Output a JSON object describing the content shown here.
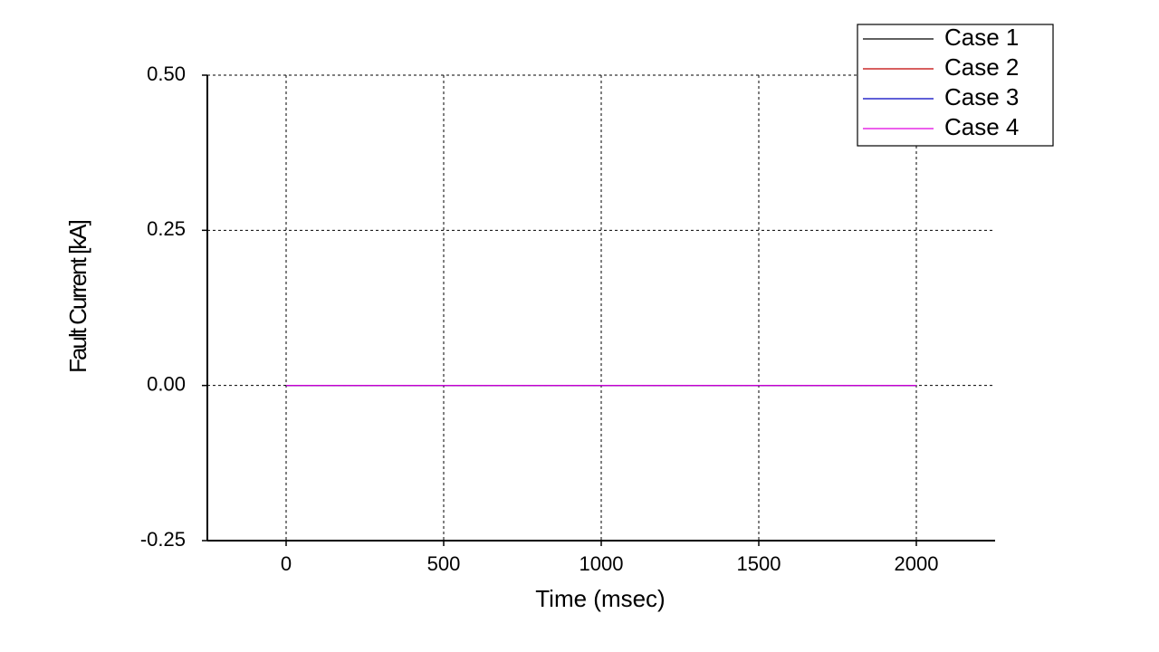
{
  "chart_data": {
    "type": "line",
    "x_label": "Time (msec)",
    "y_label": "Fault Current [kA]",
    "x": [
      0,
      2000
    ],
    "series": [
      {
        "name": "Case 1",
        "color": "#000000",
        "values": [
          0,
          0
        ]
      },
      {
        "name": "Case 2",
        "color": "#c00000",
        "values": [
          0,
          0
        ]
      },
      {
        "name": "Case 3",
        "color": "#0000c0",
        "values": [
          0,
          0
        ]
      },
      {
        "name": "Case 4",
        "color": "#e000e0",
        "values": [
          0,
          0
        ]
      }
    ],
    "xlim": [
      -250,
      2250
    ],
    "xticks": [
      0,
      500,
      1000,
      1500,
      2000
    ],
    "ylim": [
      -0.25,
      0.5
    ],
    "yticks": [
      {
        "value": -0.25,
        "label": "-0.25"
      },
      {
        "value": 0,
        "label": "0.00"
      },
      {
        "value": 0.25,
        "label": "0.25"
      },
      {
        "value": 0.5,
        "label": "0.50"
      }
    ],
    "grid": true,
    "legend": "upper right"
  }
}
